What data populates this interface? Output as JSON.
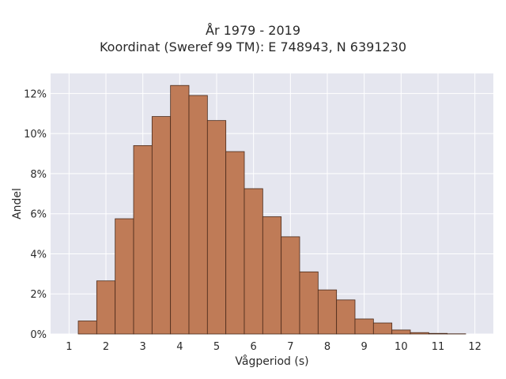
{
  "chart_data": {
    "type": "bar",
    "title": "År 1979 - 2019",
    "subtitle": "Koordinat (Sweref 99 TM): E 748943, N 6391230",
    "xlabel": "Vågperiod (s)",
    "ylabel": "Andel",
    "bin_width": 0.5,
    "bin_centers": [
      1.0,
      1.5,
      2.0,
      2.5,
      3.0,
      3.5,
      4.0,
      4.5,
      5.0,
      5.5,
      6.0,
      6.5,
      7.0,
      7.5,
      8.0,
      8.5,
      9.0,
      9.5,
      10.0,
      10.5,
      11.0,
      11.5
    ],
    "values": [
      0.0,
      0.65,
      2.65,
      5.75,
      9.4,
      10.85,
      12.4,
      11.9,
      10.65,
      9.1,
      7.25,
      5.85,
      4.85,
      3.1,
      2.2,
      1.7,
      0.75,
      0.55,
      0.2,
      0.07,
      0.03,
      0.01
    ],
    "xlim": [
      0.5,
      12.5
    ],
    "ylim": [
      0,
      13
    ],
    "x_ticks": [
      1,
      2,
      3,
      4,
      5,
      6,
      7,
      8,
      9,
      10,
      11,
      12
    ],
    "x_tick_labels": [
      "1",
      "2",
      "3",
      "4",
      "5",
      "6",
      "7",
      "8",
      "9",
      "10",
      "11",
      "12"
    ],
    "y_ticks": [
      0,
      2,
      4,
      6,
      8,
      10,
      12
    ],
    "y_tick_labels": [
      "0%",
      "2%",
      "4%",
      "6%",
      "8%",
      "10%",
      "12%"
    ],
    "grid": true,
    "colors": {
      "bar_fill": "#bf7b57",
      "bar_edge": "#4a2a1a",
      "plot_background": "#e5e6ef",
      "grid": "#ffffff"
    }
  }
}
